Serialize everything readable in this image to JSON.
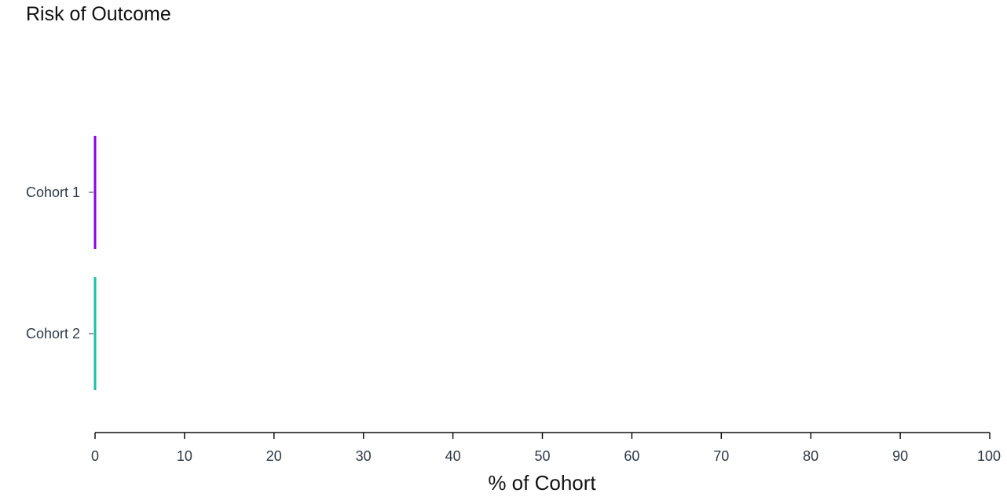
{
  "chart_data": {
    "type": "bar",
    "orientation": "horizontal",
    "title": "Risk of Outcome",
    "xlabel": "% of Cohort",
    "ylabel": "",
    "xlim": [
      0,
      100
    ],
    "x_ticks": [
      0,
      10,
      20,
      30,
      40,
      50,
      60,
      70,
      80,
      90,
      100
    ],
    "categories": [
      "Cohort 1",
      "Cohort 2"
    ],
    "values": [
      0,
      0
    ],
    "colors": [
      "#8a00e6",
      "#1bbfa6"
    ],
    "grid": false,
    "legend": "none"
  }
}
